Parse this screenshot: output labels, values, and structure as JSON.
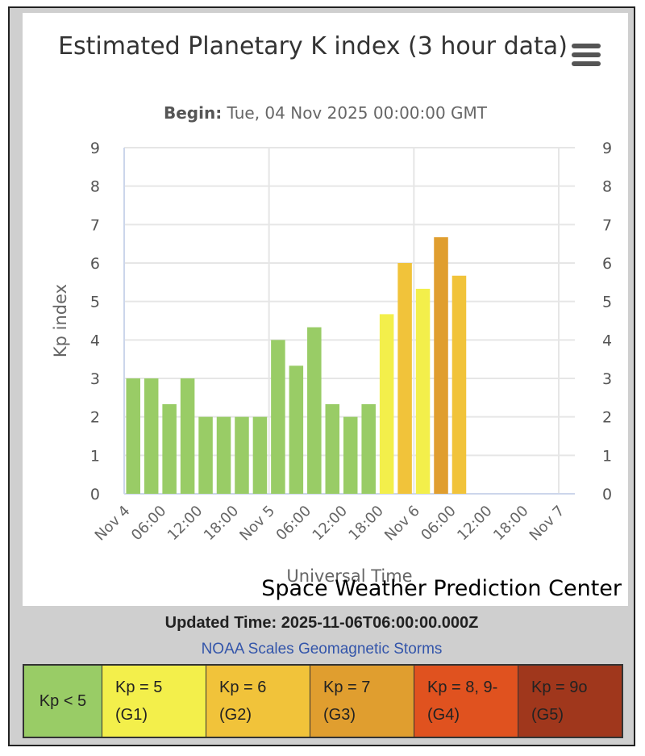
{
  "chart_data": {
    "type": "bar",
    "title": "Estimated Planetary K index (3 hour data)",
    "subtitle_label": "Begin:",
    "subtitle_value": "Tue, 04 Nov 2025 00:00:00 GMT",
    "ylabel": "Kp index",
    "xlabel": "Universal Time",
    "ylim": [
      0,
      9
    ],
    "yticks": [
      0,
      1,
      2,
      3,
      4,
      5,
      6,
      7,
      8,
      9
    ],
    "xticks": [
      "Nov 4",
      "06:00",
      "12:00",
      "18:00",
      "Nov 5",
      "06:00",
      "12:00",
      "18:00",
      "Nov 6",
      "06:00",
      "12:00",
      "18:00",
      "Nov 7"
    ],
    "x_start": "2025-11-04T00:00Z",
    "x_end": "2025-11-07T00:00Z",
    "interval_hours": 3,
    "grid": true,
    "values": [
      3,
      3,
      2.33,
      3,
      2,
      2,
      2,
      2,
      4,
      3.33,
      4.33,
      2.33,
      2,
      2.33,
      4.67,
      6,
      5.33,
      6.67,
      5.67
    ],
    "colors": [
      "#99cc66",
      "#99cc66",
      "#99cc66",
      "#99cc66",
      "#99cc66",
      "#99cc66",
      "#99cc66",
      "#99cc66",
      "#99cc66",
      "#99cc66",
      "#99cc66",
      "#99cc66",
      "#99cc66",
      "#99cc66",
      "#f3ef4b",
      "#f1c33a",
      "#f3ef4b",
      "#e09e2f",
      "#f1c33a"
    ]
  },
  "credit": "Space Weather Prediction Center",
  "updated_time": "Updated Time: 2025-11-06T06:00:00.000Z",
  "scales_link": "NOAA Scales Geomagnetic Storms",
  "legend": [
    {
      "label": "Kp < 5",
      "color": "#99cc66"
    },
    {
      "label": "Kp = 5 (G1)",
      "color": "#f3ef4b"
    },
    {
      "label": "Kp = 6 (G2)",
      "color": "#f1c33a"
    },
    {
      "label": "Kp = 7 (G3)",
      "color": "#e09e2f"
    },
    {
      "label": "Kp = 8, 9- (G4)",
      "color": "#e0521f"
    },
    {
      "label": "Kp = 9o (G5)",
      "color": "#a0371c"
    }
  ],
  "menu_icon": "hamburger-menu-icon"
}
